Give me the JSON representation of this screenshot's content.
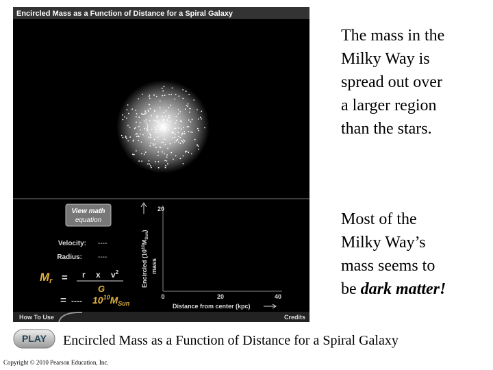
{
  "panel": {
    "title": "Encircled Mass as a Function of Distance for a Spiral Galaxy",
    "button": [
      "View math",
      "equation"
    ],
    "velocity_label": "Velocity:",
    "velocity_value": "----",
    "radius_label": "Radius:",
    "radius_value": "----",
    "equation": {
      "lhs": "M",
      "lhs_sub": "r",
      "eq1": "=",
      "num_r": "r",
      "times": "x",
      "num_v": "v",
      "num_v_exp": "2",
      "den": "G",
      "eq2": "=",
      "result": "----",
      "unit_base": "10",
      "unit_exp": "10",
      "unit_m": "M",
      "unit_sub": "Sun"
    },
    "plot": {
      "y_label_1": "Encircled (10",
      "y_label_exp": "10",
      "y_label_2": "M",
      "y_label_sub": "Sun",
      "y_label_3": ")",
      "y_label_4": "mass",
      "y_tick": 20,
      "x_ticks": [
        0,
        20,
        40
      ],
      "x_label": "Distance from center (kpc)"
    },
    "how_to_use": "How To Use",
    "credits": "Credits"
  },
  "text1": {
    "lines": [
      "The mass in the",
      "Milky Way is",
      "spread out over",
      "a larger region",
      "than the stars."
    ]
  },
  "text2": {
    "lines": [
      "Most of the",
      "Milky Way’s",
      "mass seems to"
    ],
    "last_start": "be",
    "emphasis": "dark matter!"
  },
  "play": "PLAY",
  "caption": "Encircled Mass as a Function of Distance for a Spiral Galaxy",
  "copyright": "Copyright © 2010 Pearson Education, Inc."
}
